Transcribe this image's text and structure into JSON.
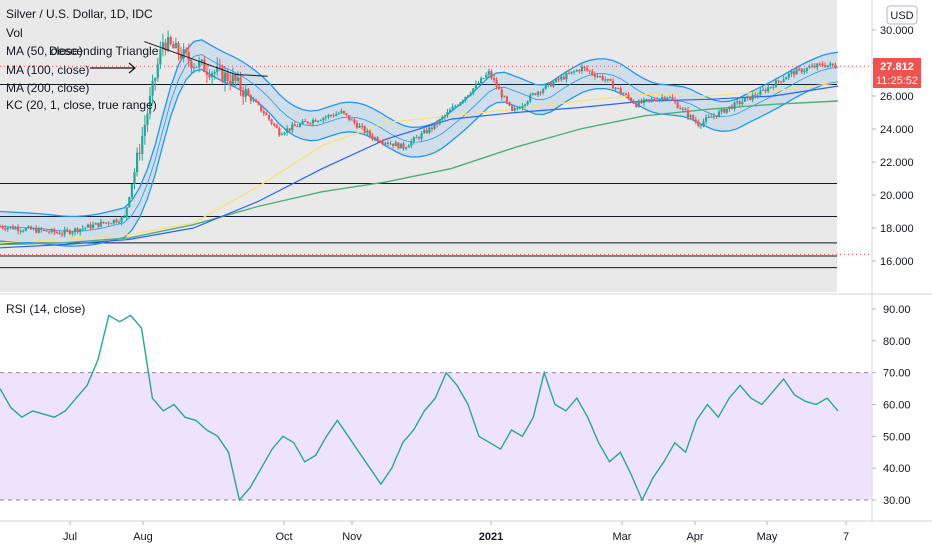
{
  "symbol_title": "Silver / U.S. Dollar, 1D, IDC",
  "legend": {
    "vol": "Vol",
    "ma50": "MA (50, close)",
    "ma100": "MA (100, close)",
    "ma200": "MA (200, close)",
    "kc": "KC (20, 1, close, true range)",
    "annotation": "Descending Triangle"
  },
  "price_box": {
    "currency": "USD",
    "last_price": "27.812",
    "countdown": "11:25:52"
  },
  "rsi_title": "RSI (14, close)",
  "colors": {
    "up_candle": "#26a69a",
    "down_candle": "#ef5350",
    "ma50": "#f5e27a",
    "ma100": "#2962ff",
    "ma200": "#4caf79",
    "kc": "#2196f3",
    "rsi_line": "#26a69a",
    "rsi_band": "#e8d5fb",
    "price_label": "#ef5350",
    "panel_bg": "#e9e9e9"
  },
  "chart_data": [
    {
      "type": "candlestick",
      "title": "Silver / U.S. Dollar, 1D, IDC",
      "x_tick_labels": [
        "Jul",
        "Aug",
        "Oct",
        "Nov",
        "2021",
        "Mar",
        "Apr",
        "May",
        "7"
      ],
      "y_tick_labels": [
        "16.000",
        "18.000",
        "20.000",
        "22.000",
        "24.000",
        "26.000",
        "28.000",
        "30.000"
      ],
      "ylim": [
        14.0,
        31.0
      ],
      "last_price": 27.812,
      "horizontal_levels": [
        15.6,
        16.3,
        17.1,
        18.7,
        20.7,
        26.7
      ],
      "dotted_levels": [
        16.4,
        27.8
      ],
      "descending_triangle": {
        "top_start": [
          18.6,
          29.3
        ],
        "top_end": [
          30.4,
          27.3
        ],
        "apex_time": [
          34.5,
          27.2
        ]
      },
      "ohlc_key_points": [
        {
          "t": 0,
          "close": 18.1
        },
        {
          "t": 8,
          "close": 17.7
        },
        {
          "t": 16,
          "close": 18.6
        },
        {
          "t": 19,
          "close": 25.0
        },
        {
          "t": 21,
          "close": 29.3
        },
        {
          "t": 25,
          "close": 28.0
        },
        {
          "t": 30,
          "close": 27.0
        },
        {
          "t": 34,
          "close": 25.0
        },
        {
          "t": 36,
          "close": 23.8
        },
        {
          "t": 40,
          "close": 24.5
        },
        {
          "t": 44,
          "close": 25.0
        },
        {
          "t": 48,
          "close": 23.5
        },
        {
          "t": 52,
          "close": 22.9
        },
        {
          "t": 56,
          "close": 24.2
        },
        {
          "t": 60,
          "close": 26.0
        },
        {
          "t": 63,
          "close": 27.4
        },
        {
          "t": 66,
          "close": 25.0
        },
        {
          "t": 69,
          "close": 26.2
        },
        {
          "t": 72,
          "close": 27.0
        },
        {
          "t": 75,
          "close": 27.7
        },
        {
          "t": 78,
          "close": 27.0
        },
        {
          "t": 82,
          "close": 25.5
        },
        {
          "t": 86,
          "close": 26.0
        },
        {
          "t": 90,
          "close": 24.3
        },
        {
          "t": 94,
          "close": 25.3
        },
        {
          "t": 98,
          "close": 26.2
        },
        {
          "t": 102,
          "close": 27.4
        },
        {
          "t": 106,
          "close": 27.9
        },
        {
          "t": 108,
          "close": 27.8
        }
      ],
      "series_ma50": [
        17.1,
        17.3,
        17.6,
        18.3,
        20.5,
        23.0,
        24.4,
        24.8,
        25.2,
        25.7,
        26.1,
        26.0,
        26.3,
        26.8
      ],
      "series_ma100": [
        16.8,
        17.0,
        17.3,
        18.0,
        19.6,
        21.6,
        23.4,
        24.6,
        25.0,
        25.3,
        25.7,
        25.8,
        26.0,
        26.6
      ],
      "series_ma200": [
        17.0,
        17.1,
        17.4,
        18.2,
        19.3,
        20.2,
        20.8,
        21.6,
        22.9,
        24.0,
        24.8,
        25.2,
        25.5,
        25.7
      ]
    },
    {
      "type": "line",
      "title": "RSI (14, close)",
      "y_tick_labels": [
        "30.00",
        "40.00",
        "50.00",
        "60.00",
        "70.00",
        "80.00",
        "90.00"
      ],
      "ylim": [
        25,
        93
      ],
      "band": [
        30,
        70
      ],
      "values": [
        65,
        59,
        56,
        58,
        57,
        56,
        58,
        62,
        66,
        74,
        88,
        86,
        88,
        84,
        62,
        58,
        60,
        56,
        55,
        52,
        50,
        45,
        30,
        34,
        40,
        46,
        50,
        48,
        42,
        44,
        50,
        55,
        50,
        45,
        40,
        35,
        40,
        48,
        52,
        58,
        62,
        70,
        66,
        60,
        50,
        48,
        46,
        52,
        50,
        56,
        70,
        60,
        58,
        62,
        56,
        48,
        42,
        45,
        38,
        30,
        37,
        42,
        48,
        45,
        55,
        60,
        56,
        62,
        66,
        62,
        60,
        64,
        68,
        63,
        61,
        60,
        62,
        58
      ]
    }
  ]
}
